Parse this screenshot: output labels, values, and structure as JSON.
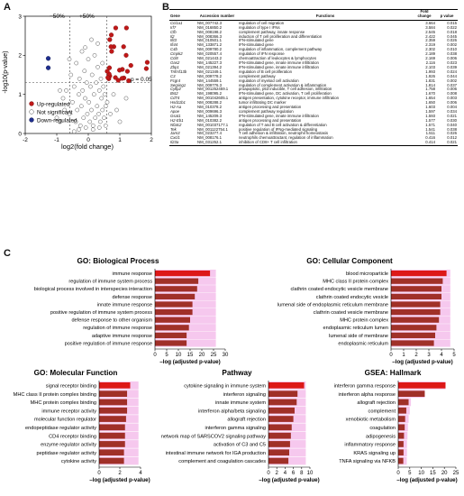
{
  "panel_labels": {
    "a": "A",
    "b": "B",
    "c": "C"
  },
  "colors": {
    "up": "#c01818",
    "down": "#1f2f8f",
    "ns": "#ffffff",
    "bar_dark": "#a03028",
    "bar_red": "#dd1818",
    "bar_pink": "#f6c8ee"
  },
  "table": {
    "headers": {
      "gene": "Gene",
      "accession": "Accession number",
      "function": "Functions",
      "fold": "Fold change",
      "p": "p value"
    },
    "rows": [
      [
        "Ccl1a1",
        "NM_007742.3",
        "regulation of cell migration",
        "3.664",
        "0.015"
      ],
      [
        "Irf7",
        "NM_016850.2",
        "regulation of type I IFNs",
        "3.584",
        "0.022"
      ],
      [
        "Cfb",
        "NM_008198.2",
        "complement pathway, innate response",
        "2.545",
        "0.018"
      ],
      [
        "Il2",
        "NM_008366.3",
        "induction of T cell proliferation and differentiation",
        "2.422",
        "0.045"
      ],
      [
        "Ifit3",
        "NM_010501.1",
        "IFN-stimulated gene",
        "2.359",
        "0.026"
      ],
      [
        "Ifi44",
        "NM_133871.2",
        "IFN-stimulated gene",
        "2.319",
        "0.002"
      ],
      [
        "C4b",
        "NM_009780.2",
        "regulation of inflammation, complement pathway",
        "2.302",
        "0.010"
      ],
      [
        "Cmpk2",
        "NM_020557.4",
        "regulation of IFN response",
        "2.189",
        "0.038"
      ],
      [
        "Ccl8",
        "NM_021443.2",
        "chemoattraction of leukocytes & lymphocytes",
        "2.169",
        "0.006"
      ],
      [
        "Oas2",
        "NM_145227.3",
        "IFN-stimulated gene, innate immune infiltration",
        "2.116",
        "0.023"
      ],
      [
        "Zbp1",
        "NM_021394.2",
        "IFN-stimulated gene, innate immune infiltration",
        "2.103",
        "0.039"
      ],
      [
        "Tnfrsf13b",
        "NM_021349.1",
        "regulation of B cell proliferation",
        "1.993",
        "0.024"
      ],
      [
        "C3",
        "NM_009778.2",
        "complement pathway",
        "1.926",
        "0.044"
      ],
      [
        "Fcgr4",
        "NM_144559.1",
        "regulation of myeloid cell activation",
        "1.831",
        "0.002"
      ],
      [
        "Serping1",
        "NM_009776.3",
        "regulation of complement activation & inflammation",
        "1.814",
        "0.037"
      ],
      [
        "Cyllp2",
        "NM_001252459.1",
        "proapoptotic, p53 inducible, T cell adhesion, infiltration",
        "1.758",
        "0.006"
      ],
      [
        "Bst2",
        "NM_198095.2",
        "IFN-stimulated gene, DC activation, T cell proliferation",
        "1.670",
        "0.008"
      ],
      [
        "Cd74",
        "NM_001042605.1",
        "antigen presentation, cytokine receptor, immune infiltration",
        "1.654",
        "0.003"
      ],
      [
        "Hsd11b1",
        "NM_008288.2",
        "tumor infiltrating DC marker",
        "1.650",
        "0.006"
      ],
      [
        "H2-Aa",
        "NM_010378.2",
        "antigen processing and presentation",
        "1.603",
        "0.004"
      ],
      [
        "Apoe",
        "NM_009696.3",
        "complement pathway regulation",
        "1.597",
        "0.034"
      ],
      [
        "Gsat1",
        "NM_145209.3",
        "IFN-stimulated gene, innate immune infiltration",
        "1.593",
        "0.021"
      ],
      [
        "H2-Eb1",
        "NM_010382.2",
        "antigen processing and presentation",
        "1.577",
        "0.030"
      ],
      [
        "Nfatc2",
        "NM_001037177.1",
        "regulation of T and B cell activation & differentiation",
        "1.571",
        "0.040"
      ],
      [
        "Tek",
        "NM_001122754.1",
        "positive regulation of IFNg-mediated signaling",
        "1.541",
        "0.038"
      ],
      [
        "Jam3",
        "NM_023277.4",
        "T cell adhesion & infiltration, neutrophil homeostasis",
        "1.511",
        "0.026"
      ],
      [
        "Cxcl1",
        "NM_008176.1",
        "neutrophils chemoattractant, regulation of inflammation",
        "0.416",
        "0.012"
      ],
      [
        "Il23a",
        "NM_031252.1",
        "inhibition of CD8+ T cell infiltration",
        "0.414",
        "0.021"
      ]
    ]
  },
  "chart_data": [
    {
      "type": "scatter",
      "panel": "A",
      "xlabel": "log2(fold change)",
      "ylabel": "-log10(p-value)",
      "xlim": [
        -2,
        2
      ],
      "ylim": [
        0,
        3
      ],
      "xticks": [
        "-2",
        "-1",
        "0",
        "1",
        "2"
      ],
      "yticks": [
        "0",
        "1",
        "2",
        "3"
      ],
      "annotations": {
        "minus": "−50%",
        "plus": "+50%",
        "pthreshold": "p = 0.05"
      },
      "legend": [
        "Up-regulated",
        "Not significant",
        "Down-regulated"
      ],
      "legend_position": "lower-left",
      "up": [
        [
          1.87,
          1.82
        ],
        [
          1.84,
          1.66
        ],
        [
          1.35,
          1.74
        ],
        [
          1.28,
          1.35
        ],
        [
          1.24,
          1.59
        ],
        [
          1.21,
          2.7
        ],
        [
          1.2,
          2.0
        ],
        [
          1.13,
          1.42
        ],
        [
          1.12,
          2.22
        ],
        [
          1.08,
          1.64
        ],
        [
          1.07,
          1.41
        ],
        [
          0.99,
          1.62
        ],
        [
          0.95,
          1.36
        ],
        [
          0.87,
          2.7
        ],
        [
          0.86,
          1.43
        ],
        [
          0.81,
          2.22
        ],
        [
          0.74,
          2.1
        ],
        [
          0.73,
          2.52
        ],
        [
          0.72,
          2.22
        ],
        [
          0.68,
          2.4
        ],
        [
          0.68,
          1.47
        ],
        [
          0.67,
          1.68
        ],
        [
          0.66,
          1.52
        ],
        [
          0.65,
          1.4
        ],
        [
          0.62,
          1.43
        ],
        [
          0.6,
          1.59
        ]
      ],
      "down": [
        [
          -1.27,
          1.92
        ],
        [
          -1.27,
          1.68
        ]
      ],
      "ns": [
        [
          -0.9,
          0.3
        ],
        [
          -0.8,
          0.9
        ],
        [
          -0.7,
          1.1
        ],
        [
          -0.6,
          0.5
        ],
        [
          -0.55,
          1.5
        ],
        [
          -0.5,
          0.8
        ],
        [
          -0.45,
          1.2
        ],
        [
          -0.4,
          0.3
        ],
        [
          -0.38,
          1.8
        ],
        [
          -0.35,
          0.6
        ],
        [
          -0.3,
          1.0
        ],
        [
          -0.28,
          1.4
        ],
        [
          -0.25,
          0.2
        ],
        [
          -0.22,
          0.7
        ],
        [
          -0.2,
          2.1
        ],
        [
          -0.18,
          1.1
        ],
        [
          -0.15,
          0.4
        ],
        [
          -0.12,
          1.6
        ],
        [
          -0.1,
          0.9
        ],
        [
          -0.08,
          0.15
        ],
        [
          -0.05,
          1.3
        ],
        [
          -0.03,
          0.5
        ],
        [
          0.0,
          1.9
        ],
        [
          0.02,
          0.8
        ],
        [
          0.05,
          0.3
        ],
        [
          0.07,
          1.2
        ],
        [
          0.1,
          0.6
        ],
        [
          0.12,
          1.5
        ],
        [
          0.15,
          0.2
        ],
        [
          0.18,
          1.0
        ],
        [
          0.2,
          2.0
        ],
        [
          0.22,
          0.4
        ],
        [
          0.25,
          1.3
        ],
        [
          0.28,
          0.7
        ],
        [
          0.3,
          1.7
        ],
        [
          0.33,
          0.5
        ],
        [
          0.35,
          1.1
        ],
        [
          0.38,
          0.3
        ],
        [
          0.4,
          1.4
        ],
        [
          0.42,
          0.9
        ],
        [
          0.45,
          0.6
        ],
        [
          0.48,
          1.2
        ],
        [
          0.5,
          0.4
        ],
        [
          0.52,
          1.0
        ],
        [
          0.55,
          0.7
        ],
        [
          0.3,
          2.3
        ],
        [
          0.1,
          2.4
        ],
        [
          -0.1,
          2.2
        ],
        [
          0.45,
          1.8
        ],
        [
          -0.6,
          1.9
        ],
        [
          -0.75,
          0.6
        ],
        [
          0.6,
          0.8
        ],
        [
          0.7,
          0.5
        ],
        [
          0.9,
          0.6
        ],
        [
          1.0,
          0.3
        ],
        [
          1.2,
          0.9
        ],
        [
          -1.0,
          0.4
        ],
        [
          -0.3,
          0.1
        ],
        [
          0.15,
          0.1
        ],
        [
          0.35,
          0.15
        ],
        [
          -0.45,
          0.05
        ],
        [
          0.55,
          0.2
        ],
        [
          0.8,
          1.0
        ],
        [
          -0.9,
          1.1
        ]
      ]
    },
    {
      "type": "bar",
      "panel": "C",
      "title": "GO: Biological Process",
      "xlabel": "–log (adjusted p-value)",
      "xlim": [
        0,
        30
      ],
      "xticks": [
        0,
        5,
        10,
        15,
        20,
        25,
        30
      ],
      "categories": [
        "immune response",
        "regulation of immune system process",
        "biological process involved in interspecies interaction",
        "defense response",
        "innate immune response",
        "positive regulation of immune system process",
        "defense response to other organism",
        "regulation of immune response",
        "adaptive immune response",
        "positive regulation of immune response"
      ],
      "values": [
        23.5,
        18.5,
        18,
        17,
        16,
        16,
        15,
        14.5,
        13.5,
        13.5
      ],
      "ref": [
        26,
        26,
        26,
        26,
        26,
        26,
        26,
        26,
        26,
        26
      ]
    },
    {
      "type": "bar",
      "panel": "C",
      "title": "GO: Cellular Component",
      "xlabel": "–log (adjusted p-value)",
      "xlim": [
        0,
        5
      ],
      "xticks": [
        0,
        1,
        2,
        3,
        4,
        5
      ],
      "categories": [
        "blood microparticle",
        "MHC class II protein complex",
        "clathrin coated endocytic vesicle membrane",
        "clathrin coated endocytic vesicle",
        "lumenal side of endoplasmic reticulum membrane",
        "clathrin coated vesicle membrane",
        "MHC protein complex",
        "endoplasmic reticulum lumen",
        "lumenal side of membrane",
        "endoplasmic reticulum"
      ],
      "values": [
        4.4,
        4.1,
        4.0,
        4.0,
        3.9,
        3.9,
        3.8,
        3.6,
        3.5,
        3.4
      ],
      "ref": [
        4.7,
        4.7,
        4.7,
        4.7,
        4.7,
        4.7,
        4.7,
        4.7,
        4.7,
        4.7
      ]
    },
    {
      "type": "bar",
      "panel": "C",
      "title": "GO: Molecular Function",
      "xlabel": "–log (adjusted p-value)",
      "xlim": [
        0,
        4
      ],
      "xticks": [
        0,
        2,
        4
      ],
      "categories": [
        "signal receptor binding",
        "MHC class II protein complex binding",
        "MHC protein complex binding",
        "immune receptor activity",
        "molecular function regulator",
        "endopeptidase regulator activity",
        "CD4 receptor binding",
        "enzyme regulator activity",
        "peptidase regulator activity",
        "cytokine activity"
      ],
      "values": [
        3.0,
        2.7,
        2.7,
        2.7,
        2.6,
        2.5,
        2.5,
        2.5,
        2.4,
        2.4
      ],
      "ref": [
        3.8,
        3.8,
        3.8,
        3.8,
        3.8,
        3.8,
        3.8,
        3.8,
        3.8,
        3.8
      ]
    },
    {
      "type": "bar",
      "panel": "C",
      "title": "Pathway",
      "xlabel": "–log (adjusted p-value)",
      "xlim": [
        0,
        10
      ],
      "xticks": [
        0,
        2,
        4,
        6,
        8,
        10
      ],
      "categories": [
        "cytokine signaling in immune system",
        "interferon signaling",
        "innate immune system",
        "interferon alpha/beta signaling",
        "allograft rejection",
        "interferon gamma signaling",
        "network map of SARSCOV2 signaling pathway",
        "activation of C3 and C5",
        "intestinal immune network for IGA production",
        "complement and coagulation cascades"
      ],
      "values": [
        8.6,
        7.0,
        6.8,
        6.3,
        6.0,
        5.6,
        5.4,
        5.2,
        5.0,
        4.8
      ],
      "ref": [
        9.0,
        9.0,
        9.0,
        9.0,
        9.0,
        9.0,
        9.0,
        9.0,
        9.0,
        9.0
      ]
    },
    {
      "type": "bar",
      "panel": "C",
      "title": "GSEA: Hallmark",
      "xlabel": "–log (adjusted p-value)",
      "xlim": [
        0,
        25
      ],
      "xticks": [
        0,
        5,
        10,
        15,
        20,
        25
      ],
      "categories": [
        "interferon gamma response",
        "interferon alpha response",
        "allograft rejection",
        "complement",
        "xenobiotic metabolism",
        "coagulation",
        "adipogenesis",
        "inflammatory response",
        "KRAS signaling up",
        "TNFA signaling via NFKB"
      ],
      "values": [
        20.5,
        11.5,
        4.5,
        3.5,
        3.0,
        2.8,
        2.5,
        2.3,
        2.3,
        2.2
      ],
      "ref": [
        20.5,
        11.5,
        5.5,
        5.0,
        4.5,
        4.2,
        4.0,
        3.8,
        3.8,
        3.7
      ]
    }
  ]
}
